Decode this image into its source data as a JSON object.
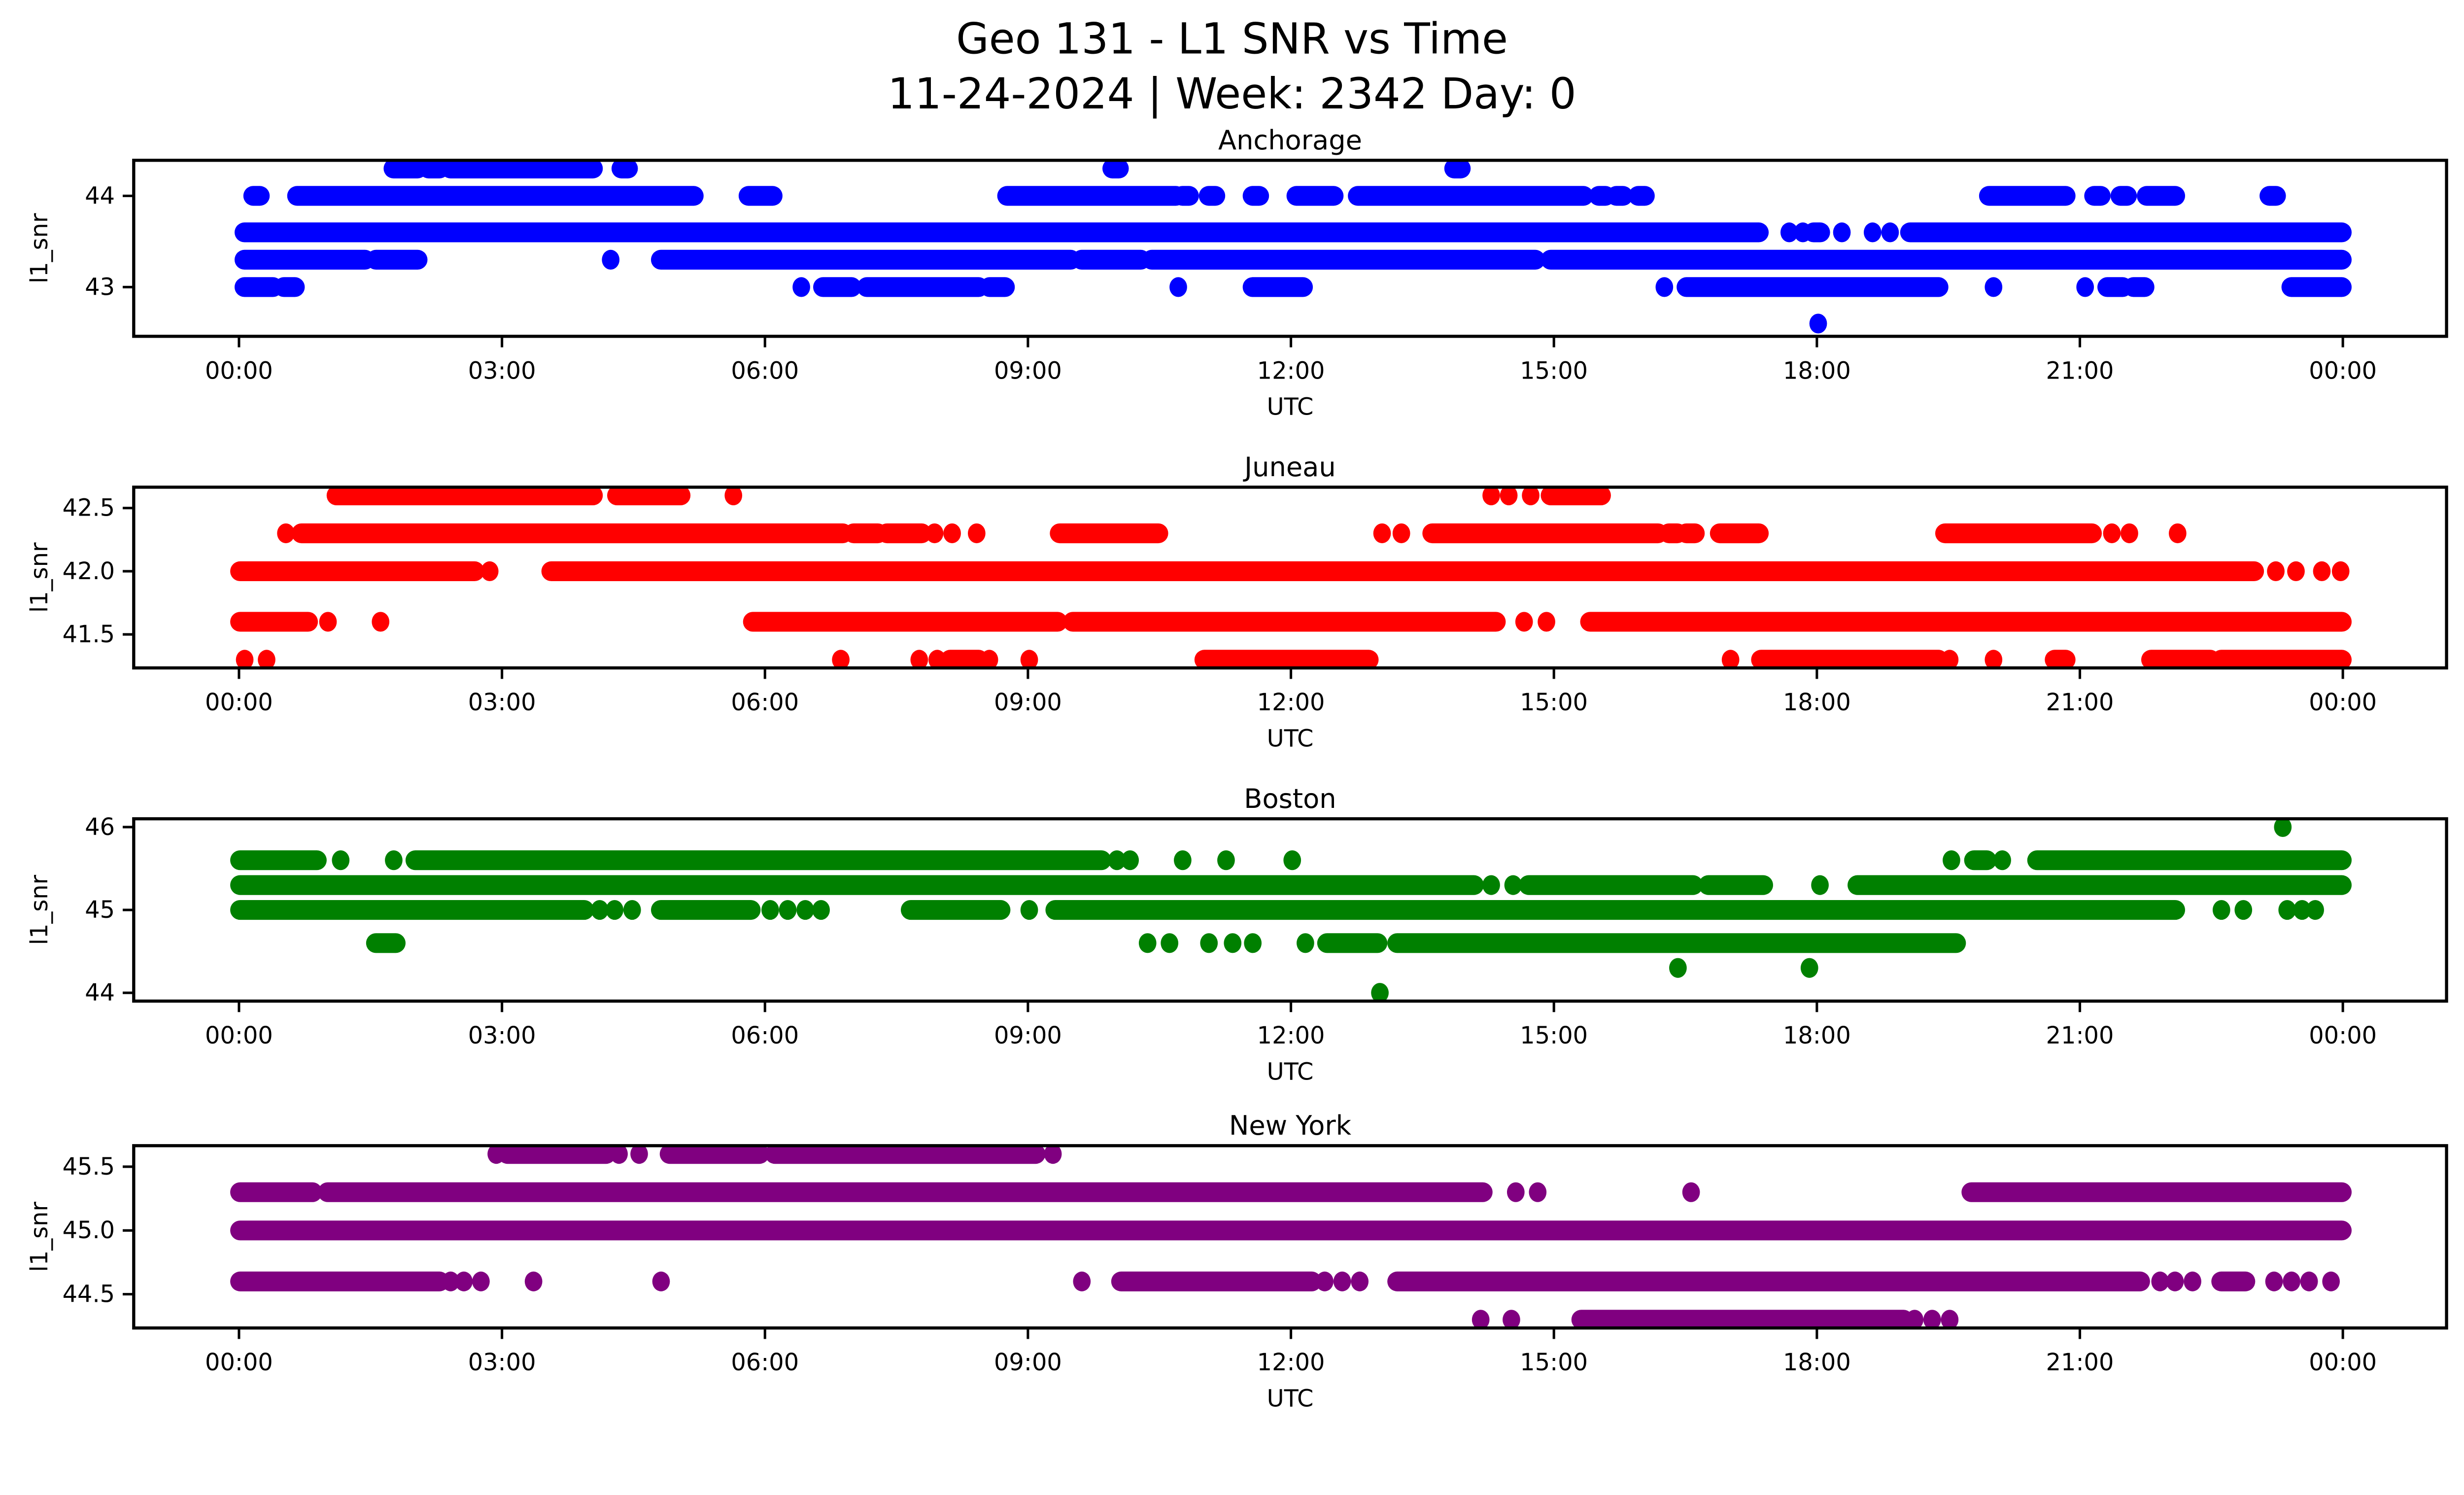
{
  "figure": {
    "suptitle_line1": "Geo 131 - L1 SNR vs Time",
    "suptitle_line2": "11-24-2024 | Week: 2342 Day: 0",
    "xlabel": "UTC",
    "ylabel": "l1_snr",
    "x_tick_hours": [
      0,
      3,
      6,
      9,
      12,
      15,
      18,
      21,
      24
    ],
    "x_tick_labels": [
      "00:00",
      "03:00",
      "06:00",
      "09:00",
      "12:00",
      "15:00",
      "18:00",
      "21:00",
      "00:00"
    ]
  },
  "chart_data": [
    {
      "type": "scatter",
      "title": "Anchorage",
      "color": "#0000ff",
      "xlabel": "UTC",
      "ylabel": "l1_snr",
      "xlim_hours": [
        -1.2,
        25.2
      ],
      "ylim": [
        42.46,
        44.39
      ],
      "yticks": [
        44,
        43
      ],
      "ytick_labels": [
        "44",
        "43"
      ],
      "bands": [
        {
          "value": 44.3,
          "segments": [
            [
              1.75,
              2.05
            ],
            [
              2.15,
              2.3
            ],
            [
              2.4,
              4.05
            ],
            [
              4.35,
              4.45
            ],
            [
              9.95,
              10.05
            ],
            [
              13.85,
              13.95
            ]
          ]
        },
        {
          "value": 44.0,
          "segments": [
            [
              0.15,
              0.25
            ],
            [
              0.65,
              5.2
            ],
            [
              5.8,
              6.1
            ],
            [
              8.75,
              10.7
            ],
            [
              10.75,
              10.85
            ],
            [
              11.05,
              11.15
            ],
            [
              11.55,
              11.65
            ],
            [
              12.05,
              12.5
            ],
            [
              12.75,
              15.35
            ],
            [
              15.5,
              15.6
            ],
            [
              15.7,
              15.8
            ],
            [
              15.95,
              16.05
            ],
            [
              19.95,
              20.85
            ],
            [
              21.15,
              21.25
            ],
            [
              21.45,
              21.55
            ],
            [
              21.75,
              22.1
            ],
            [
              23.15,
              23.25
            ]
          ]
        },
        {
          "value": 43.6,
          "segments": [
            [
              0.05,
              17.35
            ],
            [
              17.65,
              17.72
            ],
            [
              17.8,
              17.88
            ],
            [
              17.95,
              18.05
            ],
            [
              18.25,
              18.32
            ],
            [
              18.6,
              18.67
            ],
            [
              18.8,
              18.87
            ],
            [
              19.05,
              24.0
            ]
          ]
        },
        {
          "value": 43.3,
          "segments": [
            [
              0.05,
              1.45
            ],
            [
              1.55,
              2.05
            ],
            [
              4.2,
              4.28
            ],
            [
              4.8,
              9.5
            ],
            [
              9.6,
              10.3
            ],
            [
              10.4,
              14.8
            ],
            [
              14.95,
              24.0
            ]
          ]
        },
        {
          "value": 43.0,
          "segments": [
            [
              0.05,
              0.4
            ],
            [
              0.5,
              0.65
            ],
            [
              6.38,
              6.45
            ],
            [
              6.65,
              7.0
            ],
            [
              7.15,
              8.45
            ],
            [
              8.55,
              8.75
            ],
            [
              10.68,
              10.75
            ],
            [
              11.55,
              12.15
            ],
            [
              16.22,
              16.3
            ],
            [
              16.5,
              19.4
            ],
            [
              19.98,
              20.05
            ],
            [
              21.02,
              21.1
            ],
            [
              21.3,
              21.5
            ],
            [
              21.6,
              21.75
            ],
            [
              23.4,
              24.0
            ]
          ]
        },
        {
          "value": 42.6,
          "segments": [
            [
              17.98,
              18.05
            ]
          ]
        }
      ]
    },
    {
      "type": "scatter",
      "title": "Juneau",
      "color": "#ff0000",
      "xlabel": "UTC",
      "ylabel": "l1_snr",
      "xlim_hours": [
        -1.2,
        25.2
      ],
      "ylim": [
        41.235,
        42.665
      ],
      "yticks": [
        42.5,
        42.0,
        41.5
      ],
      "ytick_labels": [
        "42.5",
        "42.0",
        "41.5"
      ],
      "bands": [
        {
          "value": 42.6,
          "segments": [
            [
              1.1,
              4.05
            ],
            [
              4.3,
              5.05
            ],
            [
              5.6,
              5.68
            ],
            [
              14.25,
              14.32
            ],
            [
              14.45,
              14.52
            ],
            [
              14.7,
              14.77
            ],
            [
              14.95,
              15.55
            ]
          ]
        },
        {
          "value": 42.3,
          "segments": [
            [
              0.5,
              0.57
            ],
            [
              0.7,
              6.9
            ],
            [
              7.0,
              7.3
            ],
            [
              7.38,
              7.8
            ],
            [
              7.9,
              7.97
            ],
            [
              8.1,
              8.17
            ],
            [
              8.38,
              8.45
            ],
            [
              9.35,
              10.5
            ],
            [
              13.0,
              13.08
            ],
            [
              13.22,
              13.3
            ],
            [
              13.6,
              16.2
            ],
            [
              16.3,
              16.42
            ],
            [
              16.5,
              16.62
            ],
            [
              16.88,
              17.35
            ],
            [
              19.45,
              21.15
            ],
            [
              21.33,
              21.4
            ],
            [
              21.53,
              21.6
            ],
            [
              22.08,
              22.15
            ]
          ]
        },
        {
          "value": 42.0,
          "segments": [
            [
              0.0,
              2.7
            ],
            [
              2.82,
              2.9
            ],
            [
              3.55,
              23.0
            ],
            [
              23.2,
              23.27
            ],
            [
              23.43,
              23.5
            ],
            [
              23.72,
              23.8
            ],
            [
              23.95,
              24.0
            ]
          ]
        },
        {
          "value": 41.6,
          "segments": [
            [
              0.0,
              0.8
            ],
            [
              0.98,
              1.05
            ],
            [
              1.58,
              1.65
            ],
            [
              5.85,
              9.35
            ],
            [
              9.5,
              14.35
            ],
            [
              14.62,
              14.7
            ],
            [
              14.88,
              14.95
            ],
            [
              15.4,
              24.0
            ]
          ]
        },
        {
          "value": 41.3,
          "segments": [
            [
              0.03,
              0.1
            ],
            [
              0.28,
              0.35
            ],
            [
              6.83,
              6.9
            ],
            [
              7.72,
              7.8
            ],
            [
              7.93,
              8.0
            ],
            [
              8.1,
              8.45
            ],
            [
              8.52,
              8.6
            ],
            [
              8.98,
              9.05
            ],
            [
              11.0,
              12.9
            ],
            [
              16.98,
              17.05
            ],
            [
              17.35,
              19.4
            ],
            [
              19.48,
              19.55
            ],
            [
              19.98,
              20.05
            ],
            [
              20.7,
              20.85
            ],
            [
              21.8,
              22.5
            ],
            [
              22.6,
              24.0
            ]
          ]
        }
      ]
    },
    {
      "type": "scatter",
      "title": "Boston",
      "color": "#008000",
      "xlabel": "UTC",
      "ylabel": "l1_snr",
      "xlim_hours": [
        -1.2,
        25.2
      ],
      "ylim": [
        43.9,
        46.1
      ],
      "yticks": [
        46,
        45,
        44
      ],
      "ytick_labels": [
        "46",
        "45",
        "44"
      ],
      "bands": [
        {
          "value": 46.0,
          "segments": [
            [
              23.28,
              23.35
            ]
          ]
        },
        {
          "value": 45.6,
          "segments": [
            [
              0.0,
              0.9
            ],
            [
              1.12,
              1.2
            ],
            [
              1.73,
              1.8
            ],
            [
              2.0,
              9.85
            ],
            [
              9.98,
              10.05
            ],
            [
              10.13,
              10.2
            ],
            [
              10.73,
              10.8
            ],
            [
              11.22,
              11.3
            ],
            [
              11.98,
              12.05
            ],
            [
              19.5,
              19.57
            ],
            [
              19.78,
              19.95
            ],
            [
              20.08,
              20.15
            ],
            [
              20.5,
              24.0
            ]
          ]
        },
        {
          "value": 45.3,
          "segments": [
            [
              0.0,
              14.1
            ],
            [
              14.25,
              14.32
            ],
            [
              14.5,
              14.57
            ],
            [
              14.7,
              16.6
            ],
            [
              16.75,
              17.4
            ],
            [
              18.0,
              18.07
            ],
            [
              18.45,
              24.0
            ]
          ]
        },
        {
          "value": 45.0,
          "segments": [
            [
              0.0,
              3.95
            ],
            [
              4.08,
              4.15
            ],
            [
              4.25,
              4.32
            ],
            [
              4.45,
              4.52
            ],
            [
              4.8,
              5.85
            ],
            [
              6.02,
              6.1
            ],
            [
              6.22,
              6.3
            ],
            [
              6.42,
              6.5
            ],
            [
              6.6,
              6.68
            ],
            [
              7.65,
              8.7
            ],
            [
              8.98,
              9.05
            ],
            [
              9.3,
              22.1
            ],
            [
              22.58,
              22.65
            ],
            [
              22.83,
              22.9
            ],
            [
              23.33,
              23.4
            ],
            [
              23.5,
              23.57
            ],
            [
              23.65,
              23.72
            ]
          ]
        },
        {
          "value": 44.6,
          "segments": [
            [
              1.55,
              1.8
            ],
            [
              10.33,
              10.4
            ],
            [
              10.58,
              10.65
            ],
            [
              11.03,
              11.1
            ],
            [
              11.3,
              11.37
            ],
            [
              11.53,
              11.6
            ],
            [
              12.13,
              12.2
            ],
            [
              12.4,
              13.0
            ],
            [
              13.2,
              19.6
            ]
          ]
        },
        {
          "value": 44.3,
          "segments": [
            [
              16.38,
              16.45
            ],
            [
              17.88,
              17.95
            ]
          ]
        },
        {
          "value": 44.0,
          "segments": [
            [
              12.98,
              13.05
            ]
          ]
        }
      ]
    },
    {
      "type": "scatter",
      "title": "New York",
      "color": "#800080",
      "xlabel": "UTC",
      "ylabel": "l1_snr",
      "xlim_hours": [
        -1.2,
        25.2
      ],
      "ylim": [
        44.235,
        45.665
      ],
      "yticks": [
        45.5,
        45.0,
        44.5
      ],
      "ytick_labels": [
        "45.5",
        "45.0",
        "44.5"
      ],
      "bands": [
        {
          "value": 45.6,
          "segments": [
            [
              2.9,
              2.97
            ],
            [
              3.05,
              4.2
            ],
            [
              4.3,
              4.37
            ],
            [
              4.53,
              4.6
            ],
            [
              4.9,
              5.95
            ],
            [
              6.1,
              9.1
            ],
            [
              9.25,
              9.32
            ]
          ]
        },
        {
          "value": 45.3,
          "segments": [
            [
              0.0,
              0.85
            ],
            [
              1.0,
              14.2
            ],
            [
              14.53,
              14.6
            ],
            [
              14.78,
              14.85
            ],
            [
              16.53,
              16.6
            ],
            [
              19.75,
              24.0
            ]
          ]
        },
        {
          "value": 45.0,
          "segments": [
            [
              0.0,
              24.0
            ]
          ]
        },
        {
          "value": 44.6,
          "segments": [
            [
              0.0,
              2.3
            ],
            [
              2.38,
              2.45
            ],
            [
              2.53,
              2.6
            ],
            [
              2.72,
              2.8
            ],
            [
              3.32,
              3.4
            ],
            [
              4.78,
              4.85
            ],
            [
              9.58,
              9.65
            ],
            [
              10.05,
              12.25
            ],
            [
              12.35,
              12.42
            ],
            [
              12.55,
              12.62
            ],
            [
              12.75,
              12.82
            ],
            [
              13.2,
              21.7
            ],
            [
              21.88,
              21.95
            ],
            [
              22.05,
              22.12
            ],
            [
              22.25,
              22.32
            ],
            [
              22.6,
              22.9
            ],
            [
              23.18,
              23.25
            ],
            [
              23.38,
              23.45
            ],
            [
              23.58,
              23.65
            ],
            [
              23.83,
              23.9
            ]
          ]
        },
        {
          "value": 44.3,
          "segments": [
            [
              14.13,
              14.2
            ],
            [
              14.48,
              14.55
            ],
            [
              15.3,
              19.0
            ],
            [
              19.08,
              19.15
            ],
            [
              19.28,
              19.35
            ],
            [
              19.48,
              19.55
            ]
          ]
        }
      ]
    }
  ]
}
